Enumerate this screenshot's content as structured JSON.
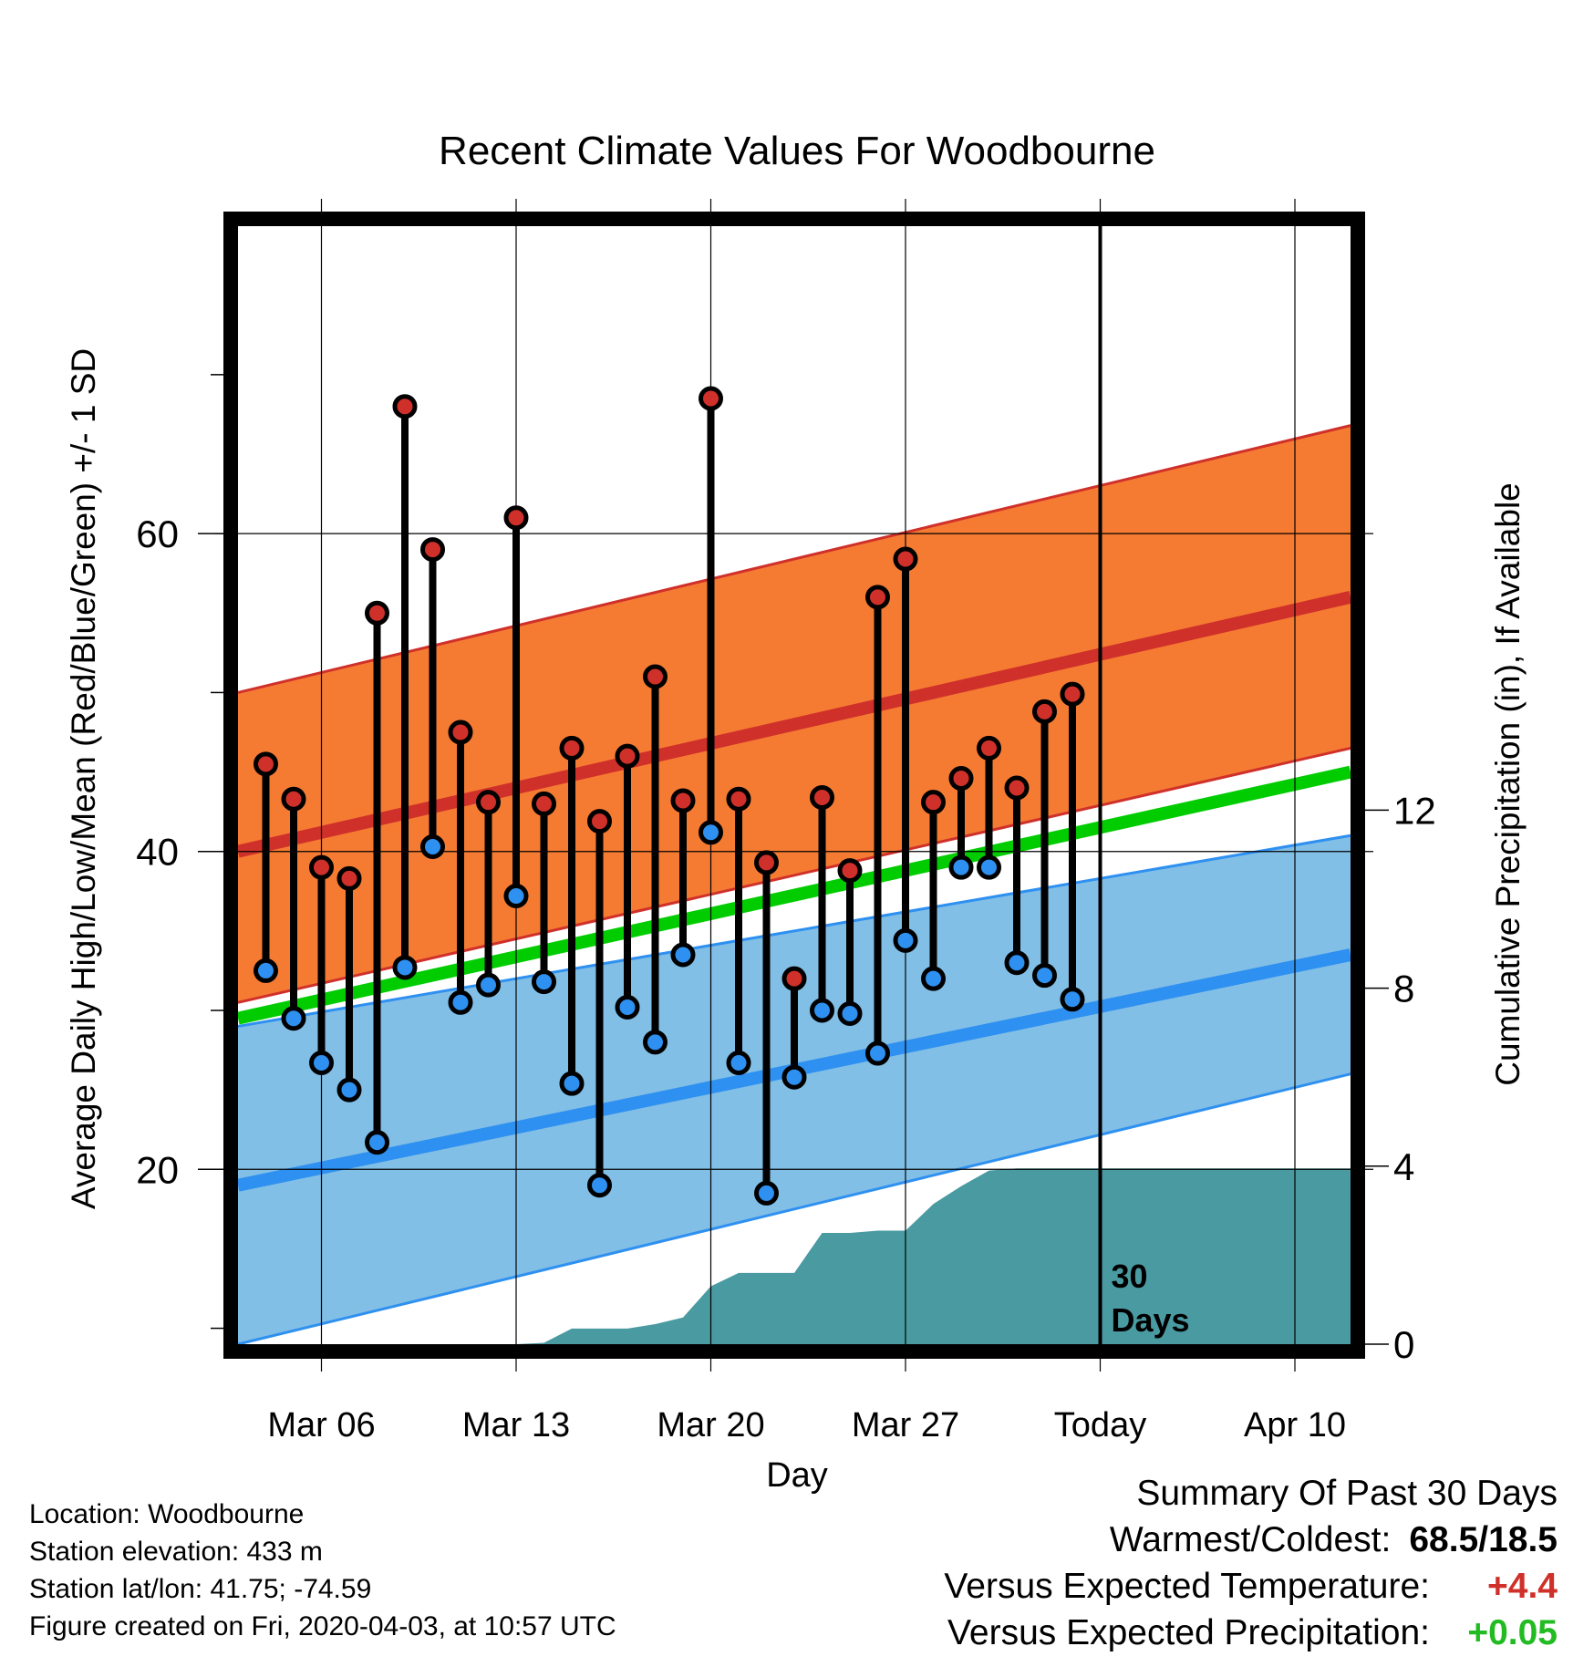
{
  "chart_data": {
    "type": "line",
    "title": "Recent Climate Values For Woodbourne",
    "xlabel": "Day",
    "ylabel_left": "Average Daily High/Low/Mean (Red/Blue/Green) +/- 1 SD",
    "ylabel_right": "Cumulative Precipitation (in), If Available",
    "x_tick_labels": [
      "Mar 06",
      "Mar 13",
      "Mar 20",
      "Mar 27",
      "Today",
      "Apr 10"
    ],
    "x_tick_days": [
      2,
      9,
      16,
      23,
      30,
      37
    ],
    "xlim_days": [
      -1,
      39
    ],
    "y_left_ticks": [
      20,
      40,
      60
    ],
    "ylim_left": [
      9,
      79
    ],
    "y_right_ticks": [
      0,
      4,
      8,
      12
    ],
    "ylim_right": [
      0,
      25
    ],
    "today_label": "30\nDays",
    "grid": true,
    "normal_high": {
      "start": [
        40,
        50,
        30.5
      ],
      "end": [
        56,
        66.8,
        46.5
      ]
    },
    "normal_low": {
      "start": [
        19,
        29,
        9
      ],
      "end": [
        33.5,
        41,
        26
      ]
    },
    "normal_mean": {
      "start": 29.5,
      "end": 45
    },
    "observed": [
      {
        "high": 45.5,
        "low": 32.5
      },
      {
        "high": 43.3,
        "low": 29.5
      },
      {
        "high": 39.0,
        "low": 26.7
      },
      {
        "high": 38.3,
        "low": 25.0
      },
      {
        "high": 55.0,
        "low": 21.7
      },
      {
        "high": 68.0,
        "low": 32.7
      },
      {
        "high": 59.0,
        "low": 40.3
      },
      {
        "high": 47.5,
        "low": 30.5
      },
      {
        "high": 43.1,
        "low": 31.6
      },
      {
        "high": 61.0,
        "low": 37.2
      },
      {
        "high": 43.0,
        "low": 31.8
      },
      {
        "high": 46.5,
        "low": 25.4
      },
      {
        "high": 41.9,
        "low": 19.0
      },
      {
        "high": 46.0,
        "low": 30.2
      },
      {
        "high": 51.0,
        "low": 28.0
      },
      {
        "high": 43.2,
        "low": 33.5
      },
      {
        "high": 68.5,
        "low": 41.2
      },
      {
        "high": 43.3,
        "low": 26.7
      },
      {
        "high": 39.3,
        "low": 18.5
      },
      {
        "high": 32.0,
        "low": 25.8
      },
      {
        "high": 43.4,
        "low": 30.0
      },
      {
        "high": 38.8,
        "low": 29.8
      },
      {
        "high": 56.0,
        "low": 27.3
      },
      {
        "high": 58.4,
        "low": 34.4
      },
      {
        "high": 43.1,
        "low": 32.0
      },
      {
        "high": 44.6,
        "low": 39.0
      },
      {
        "high": 46.5,
        "low": 39.0
      },
      {
        "high": 44.0,
        "low": 33.0
      },
      {
        "high": 48.8,
        "low": 32.2
      },
      {
        "high": 49.9,
        "low": 30.7
      }
    ],
    "precip_days": [
      0,
      6,
      9,
      10,
      11,
      12,
      13,
      14,
      15,
      16,
      17,
      18,
      19,
      20,
      21,
      22,
      23,
      24,
      25,
      26,
      27,
      28,
      29,
      30,
      39
    ],
    "precip_cumulative": [
      0,
      0,
      0,
      0.03,
      0.35,
      0.35,
      0.35,
      0.45,
      0.6,
      1.3,
      1.6,
      1.6,
      1.6,
      2.5,
      2.5,
      2.55,
      2.55,
      3.15,
      3.55,
      3.9,
      3.95,
      3.95,
      3.95,
      3.95,
      3.95
    ],
    "colors": {
      "high_band": "#f57b33",
      "high_line": "#d0302a",
      "low_band": "#82bfe6",
      "low_line": "#2e90f0",
      "mean_line": "#00cc00",
      "precip": "#4a9aa2",
      "high_dot": "#d0302a",
      "low_dot": "#2e90f0"
    }
  },
  "info": {
    "location": "Location: Woodbourne",
    "elevation": "Station elevation: 433 m",
    "latlon": "Station lat/lon: 41.75; -74.59",
    "created": "Figure created on Fri, 2020-04-03, at 10:57 UTC"
  },
  "summary": {
    "heading": "Summary Of Past 30 Days",
    "warm_cold_label": "Warmest/Coldest:",
    "warm_cold_value": "68.5/18.5",
    "temp_label": "Versus Expected Temperature:",
    "temp_value": "+4.4",
    "temp_color": "#d0302a",
    "precip_label": "Versus Expected Precipitation:",
    "precip_value": "+0.05",
    "precip_color": "#22bb22"
  }
}
